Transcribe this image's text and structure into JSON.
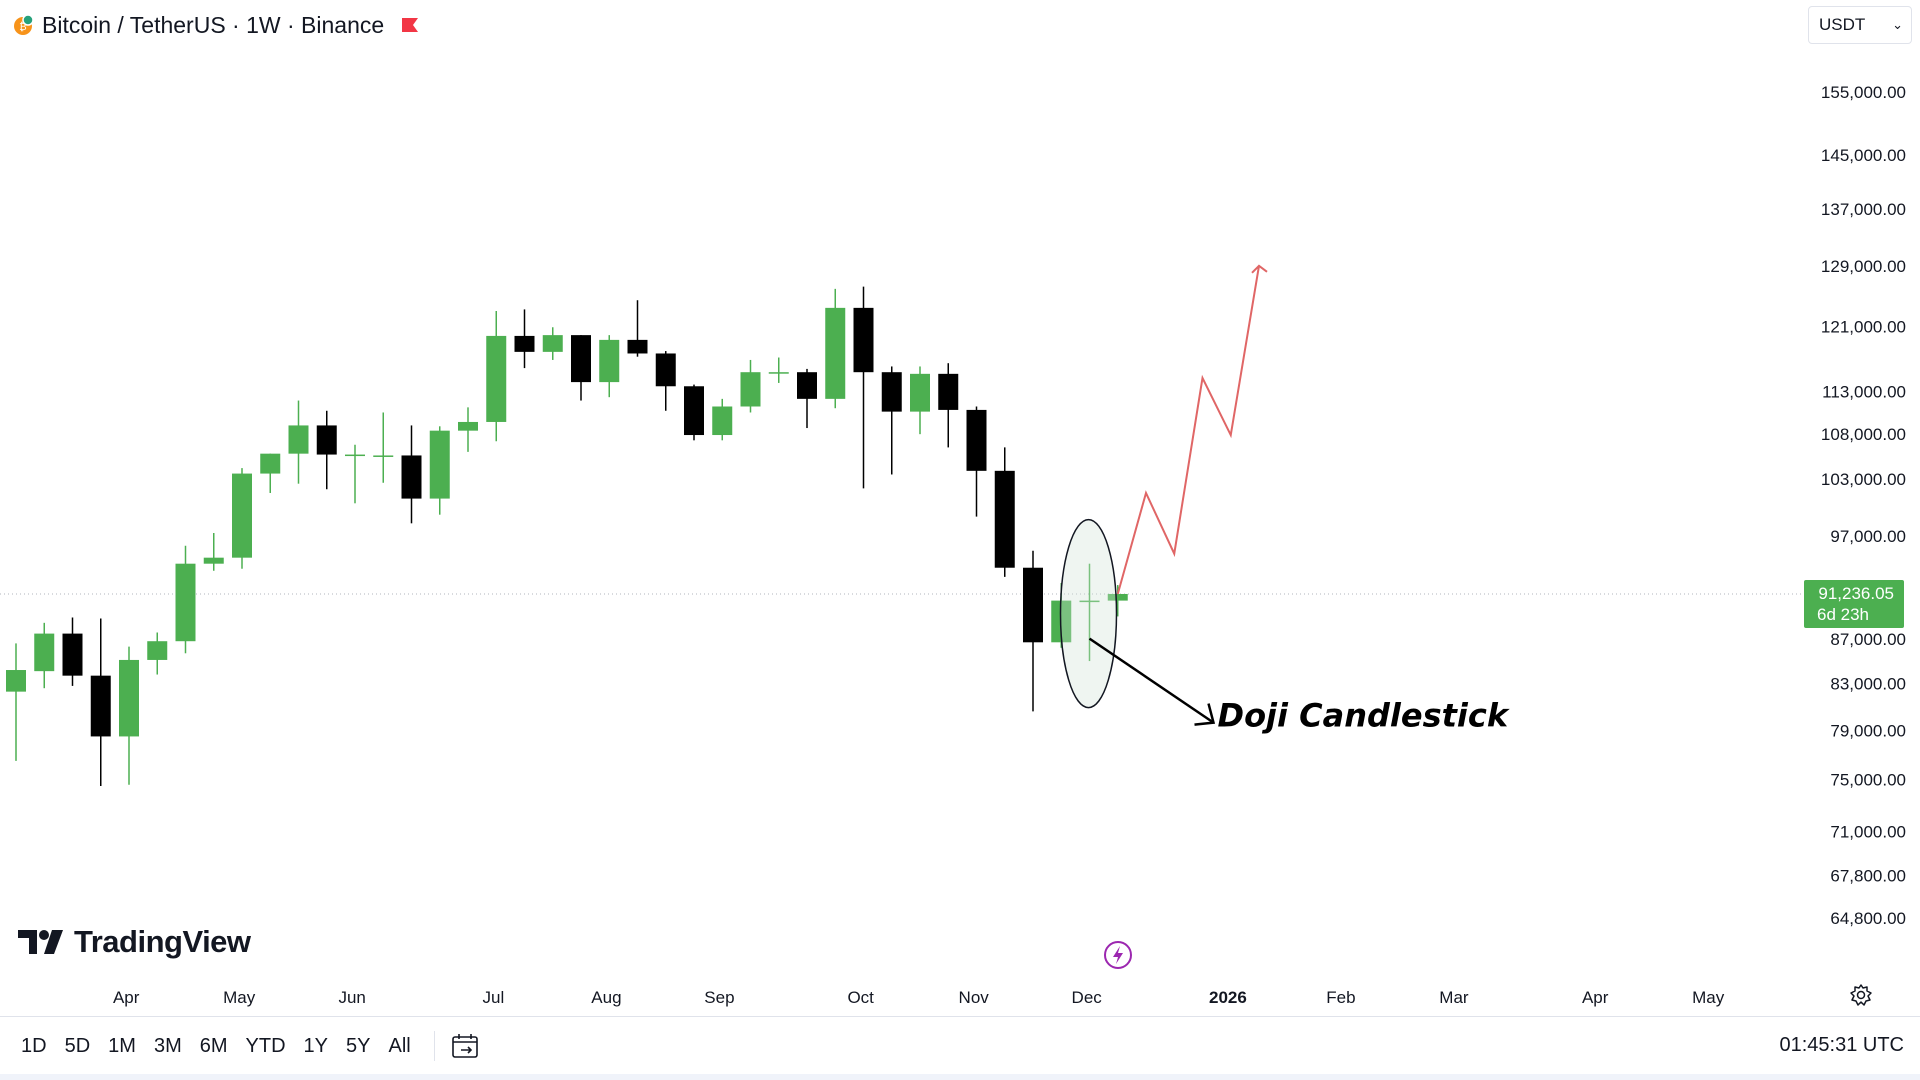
{
  "header": {
    "title": "Bitcoin / TetherUS · 1W · Binance",
    "coin_icon": "bitcoin-icon",
    "flag_icon": "red-flag-icon"
  },
  "currency": {
    "selected": "USDT",
    "chevron": "⌄"
  },
  "logo": {
    "text": "TradingView",
    "icon": "tradingview-logo-icon"
  },
  "bottom_bar": {
    "ranges": [
      "1D",
      "5D",
      "1M",
      "3M",
      "6M",
      "YTD",
      "1Y",
      "5Y",
      "All"
    ],
    "calendar_icon": "calendar-goto-icon",
    "clock": "01:45:31 UTC"
  },
  "chart_data": {
    "type": "candlestick",
    "y_scale": "log",
    "ylim": [
      62000,
      162000
    ],
    "y_ticks": [
      {
        "value": 155000,
        "label": "155,000.00"
      },
      {
        "value": 145000,
        "label": "145,000.00"
      },
      {
        "value": 137000,
        "label": "137,000.00"
      },
      {
        "value": 129000,
        "label": "129,000.00"
      },
      {
        "value": 121000,
        "label": "121,000.00"
      },
      {
        "value": 113000,
        "label": "113,000.00"
      },
      {
        "value": 108000,
        "label": "108,000.00"
      },
      {
        "value": 103000,
        "label": "103,000.00"
      },
      {
        "value": 97000,
        "label": "97,000.00"
      },
      {
        "value": 87000,
        "label": "87,000.00"
      },
      {
        "value": 83000,
        "label": "83,000.00"
      },
      {
        "value": 79000,
        "label": "79,000.00"
      },
      {
        "value": 75000,
        "label": "75,000.00"
      },
      {
        "value": 71000,
        "label": "71,000.00"
      },
      {
        "value": 67800,
        "label": "67,800.00"
      },
      {
        "value": 64800,
        "label": "64,800.00"
      }
    ],
    "x_ticks": [
      {
        "label": "Apr",
        "week": 4
      },
      {
        "label": "May",
        "week": 8
      },
      {
        "label": "Jun",
        "week": 12
      },
      {
        "label": "Jul",
        "week": 17
      },
      {
        "label": "Aug",
        "week": 21
      },
      {
        "label": "Sep",
        "week": 25
      },
      {
        "label": "Oct",
        "week": 30
      },
      {
        "label": "Nov",
        "week": 34
      },
      {
        "label": "Dec",
        "week": 38
      },
      {
        "label": "2026",
        "week": 43,
        "bold": true
      },
      {
        "label": "Feb",
        "week": 47
      },
      {
        "label": "Mar",
        "week": 51
      },
      {
        "label": "Apr",
        "week": 56
      },
      {
        "label": "May",
        "week": 60
      }
    ],
    "candles": [
      {
        "o": 82300,
        "h": 86600,
        "l": 76500,
        "c": 84200
      },
      {
        "o": 84100,
        "h": 88500,
        "l": 82600,
        "c": 87500
      },
      {
        "o": 87500,
        "h": 89000,
        "l": 82800,
        "c": 83700
      },
      {
        "o": 83700,
        "h": 88900,
        "l": 74500,
        "c": 78500
      },
      {
        "o": 78500,
        "h": 86300,
        "l": 74600,
        "c": 85100
      },
      {
        "o": 85100,
        "h": 87600,
        "l": 83800,
        "c": 86800
      },
      {
        "o": 86800,
        "h": 96000,
        "l": 85700,
        "c": 94200
      },
      {
        "o": 94200,
        "h": 97300,
        "l": 93500,
        "c": 94800
      },
      {
        "o": 94800,
        "h": 104200,
        "l": 93700,
        "c": 103600
      },
      {
        "o": 103600,
        "h": 105800,
        "l": 101500,
        "c": 105800
      },
      {
        "o": 105800,
        "h": 111900,
        "l": 102500,
        "c": 109000
      },
      {
        "o": 109000,
        "h": 110700,
        "l": 101900,
        "c": 105700
      },
      {
        "o": 105700,
        "h": 106800,
        "l": 100400,
        "c": 105700
      },
      {
        "o": 105600,
        "h": 110500,
        "l": 102600,
        "c": 105600
      },
      {
        "o": 105600,
        "h": 109000,
        "l": 98300,
        "c": 100900
      },
      {
        "o": 100900,
        "h": 108900,
        "l": 99200,
        "c": 108400
      },
      {
        "o": 108400,
        "h": 111100,
        "l": 106000,
        "c": 109400
      },
      {
        "o": 109400,
        "h": 123000,
        "l": 107200,
        "c": 119800
      },
      {
        "o": 119800,
        "h": 123200,
        "l": 115800,
        "c": 117800
      },
      {
        "o": 117800,
        "h": 120900,
        "l": 116800,
        "c": 119900
      },
      {
        "o": 119900,
        "h": 119900,
        "l": 111900,
        "c": 114100
      },
      {
        "o": 114100,
        "h": 119900,
        "l": 112300,
        "c": 119300
      },
      {
        "o": 119300,
        "h": 124400,
        "l": 117200,
        "c": 117600
      },
      {
        "o": 117600,
        "h": 117900,
        "l": 110700,
        "c": 113600
      },
      {
        "o": 113600,
        "h": 113800,
        "l": 107300,
        "c": 107900
      },
      {
        "o": 107900,
        "h": 112100,
        "l": 107300,
        "c": 111200
      },
      {
        "o": 111200,
        "h": 116800,
        "l": 110500,
        "c": 115300
      },
      {
        "o": 115300,
        "h": 117100,
        "l": 114000,
        "c": 115300
      },
      {
        "o": 115300,
        "h": 115700,
        "l": 108700,
        "c": 112100
      },
      {
        "o": 112100,
        "h": 125900,
        "l": 111000,
        "c": 123400
      },
      {
        "o": 123400,
        "h": 126200,
        "l": 102000,
        "c": 115300
      },
      {
        "o": 115300,
        "h": 116000,
        "l": 103500,
        "c": 110600
      },
      {
        "o": 110600,
        "h": 116000,
        "l": 108000,
        "c": 115100
      },
      {
        "o": 115100,
        "h": 116400,
        "l": 106500,
        "c": 110800
      },
      {
        "o": 110800,
        "h": 111200,
        "l": 99000,
        "c": 103900
      },
      {
        "o": 103900,
        "h": 106500,
        "l": 92900,
        "c": 93800
      },
      {
        "o": 93800,
        "h": 95500,
        "l": 80600,
        "c": 86700
      },
      {
        "o": 86700,
        "h": 92300,
        "l": 86200,
        "c": 90600
      },
      {
        "o": 90600,
        "h": 94200,
        "l": 85000,
        "c": 90600
      },
      {
        "o": 90600,
        "h": 92100,
        "l": 89100,
        "c": 91236.05
      }
    ],
    "bull_color": "#4caf50",
    "bear_color": "#000000",
    "current_price": {
      "value": 91236.05,
      "label": "91,236.05",
      "countdown": "6d 23h",
      "color": "#4caf50"
    },
    "projection": {
      "color": "#e06666",
      "points": [
        {
          "week": 39,
          "price": 91236.05
        },
        {
          "week": 40,
          "price": 101500
        },
        {
          "week": 41,
          "price": 95200
        },
        {
          "week": 42,
          "price": 114600
        },
        {
          "week": 43,
          "price": 107900
        },
        {
          "week": 44,
          "price": 129000
        }
      ]
    },
    "annotation": {
      "text": "Doji Candlestick",
      "target_week": 38
    }
  }
}
